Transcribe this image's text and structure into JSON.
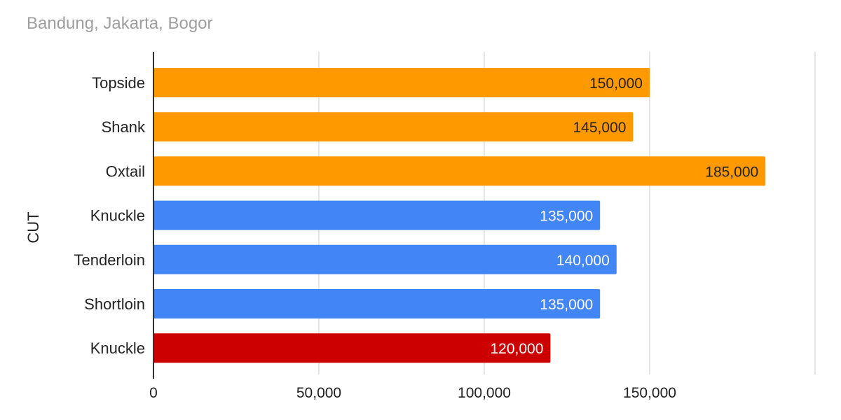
{
  "chart_data": {
    "type": "bar",
    "orientation": "horizontal",
    "title": "",
    "subtitle": "Bandung, Jakarta, Bogor",
    "xlabel": "",
    "ylabel": "CUT",
    "categories": [
      "Topside",
      "Shank",
      "Oxtail",
      "Knuckle",
      "Tenderloin",
      "Shortloin",
      "Knuckle"
    ],
    "values": [
      150000,
      145000,
      185000,
      135000,
      140000,
      135000,
      120000
    ],
    "value_labels": [
      "150,000",
      "145,000",
      "185,000",
      "135,000",
      "140,000",
      "135,000",
      "120,000"
    ],
    "bar_colors": [
      "#ff9900",
      "#ff9900",
      "#ff9900",
      "#4285f4",
      "#4285f4",
      "#4285f4",
      "#cc0000"
    ],
    "label_colors": [
      "#222222",
      "#222222",
      "#222222",
      "#ffffff",
      "#ffffff",
      "#ffffff",
      "#ffffff"
    ],
    "xlim": [
      0,
      200000
    ],
    "x_ticks": [
      0,
      50000,
      100000,
      150000
    ],
    "x_tick_labels": [
      "0",
      "50,000",
      "100,000",
      "150,000"
    ],
    "grid": true,
    "legend": "none"
  }
}
